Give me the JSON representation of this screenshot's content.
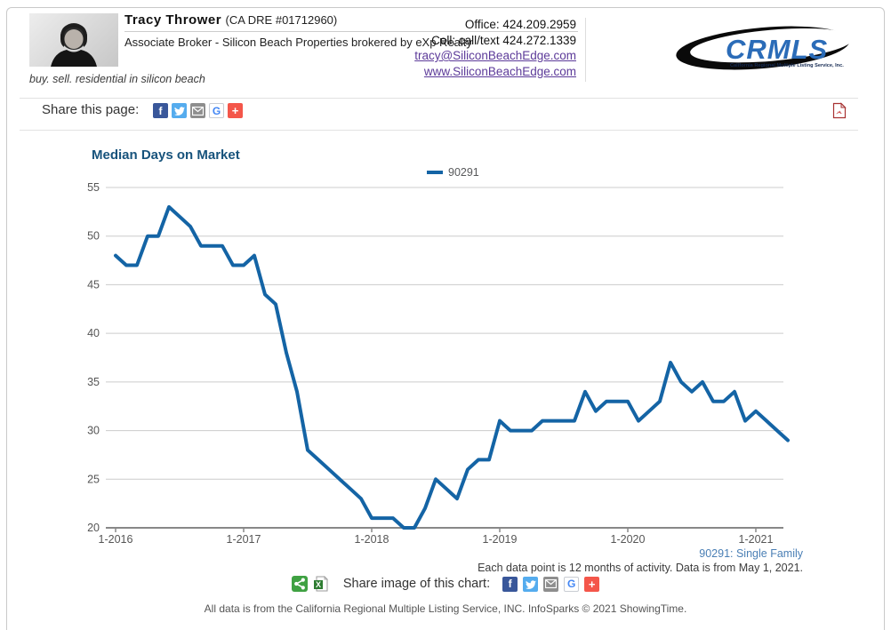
{
  "header": {
    "agent_name": "Tracy Thrower",
    "license": "(CA DRE #01712960)",
    "agent_title": "Associate Broker - Silicon Beach Properties brokered by eXp Realty",
    "tagline": "buy. sell. residential in silicon beach",
    "office_label": "Office: 424.209.2959",
    "cell_label": "Cell: call/text 424.272.1339",
    "email": "tracy@SiliconBeachEdge.com",
    "website": "www.SiliconBeachEdge.com",
    "logo_text": "CRMLS",
    "logo_tagline": "California Regional Multiple Listing Service, Inc."
  },
  "share_bar": {
    "label": "Share this page:",
    "icons": [
      "facebook",
      "twitter",
      "email",
      "google",
      "plus"
    ],
    "pdf_icon": "pdf-download"
  },
  "chart": {
    "title": "Median Days on Market",
    "legend_label": "90291",
    "series_note": "90291: Single Family",
    "footnote": "Each data point is 12 months of activity. Data is from May 1, 2021.",
    "share_label": "Share image of this chart:",
    "share_icons": [
      "share",
      "excel",
      "facebook",
      "twitter",
      "email",
      "google",
      "plus"
    ]
  },
  "chart_data": {
    "type": "line",
    "title": "Median Days on Market",
    "x_start": "2016-01",
    "x_end": "2021-04",
    "x_interval": "monthly",
    "x_tick_labels": [
      "1-2016",
      "1-2017",
      "1-2018",
      "1-2019",
      "1-2020",
      "1-2021"
    ],
    "y_ticks": [
      20,
      25,
      30,
      35,
      40,
      45,
      50,
      55
    ],
    "ylim": [
      20,
      55
    ],
    "grid": "horizontal",
    "legend_position": "top-center",
    "line_color": "#1464A5",
    "series": [
      {
        "name": "90291",
        "values": [
          48,
          47,
          47,
          50,
          50,
          53,
          52,
          51,
          49,
          49,
          49,
          47,
          47,
          48,
          44,
          43,
          38,
          34,
          28,
          27,
          26,
          25,
          24,
          23,
          21,
          21,
          21,
          20,
          20,
          22,
          25,
          24,
          23,
          26,
          27,
          27,
          31,
          30,
          30,
          30,
          31,
          31,
          31,
          31,
          34,
          32,
          33,
          33,
          33,
          31,
          32,
          33,
          37,
          35,
          34,
          35,
          33,
          33,
          34,
          31,
          32,
          31,
          30,
          29
        ]
      }
    ]
  },
  "footer": {
    "text": "All data is from the California Regional Multiple Listing Service, INC. InfoSparks © 2021 ShowingTime."
  },
  "colors": {
    "line": "#1464A5",
    "title": "#17537C",
    "grid": "#CCCCCC",
    "axis": "#888888",
    "axis_text": "#555555",
    "note_blue": "#4A7FB5",
    "link_purple": "#5C3A99",
    "facebook": "#39579A",
    "twitter": "#55ACEE",
    "email_gray": "#8E8E8E",
    "google_blue": "#4286F4",
    "plus_red": "#F4564A",
    "share_green": "#3FA142",
    "logo_blue": "#2B6CB8"
  }
}
